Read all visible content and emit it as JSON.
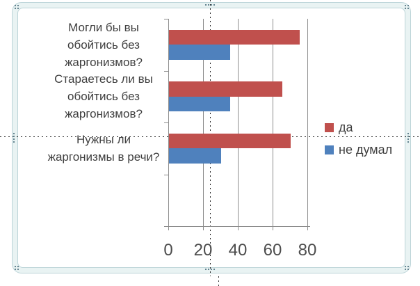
{
  "chart_data": {
    "type": "bar",
    "orientation": "horizontal",
    "categories": [
      "Могли бы вы обойтись без жаргонизмов?",
      "Стараетесь ли вы обойтись без жаргонизмов?",
      "Нужны ли жаргонизмы в речи?"
    ],
    "category_label_lines": [
      [
        "Могли бы вы",
        "обойтись без",
        "жаргонизмов?"
      ],
      [
        "Стараетесь ли вы",
        "обойтись без",
        "жаргонизмов?"
      ],
      [
        "Нужны ли",
        "жаргонизмы в речи?"
      ]
    ],
    "series": [
      {
        "name": "да",
        "color": "#C0504D",
        "values": [
          75,
          65,
          70
        ]
      },
      {
        "name": "не думал",
        "color": "#4F81BD",
        "values": [
          35,
          35,
          30
        ]
      }
    ],
    "xlim": [
      0,
      80
    ],
    "x_ticks": [
      "0",
      "20",
      "40",
      "60",
      "80"
    ],
    "grid": true,
    "legend_position": "right",
    "empty_category_slots": 1
  },
  "colors": {
    "gridline": "#8C8C8C",
    "axis": "#8C8C8C",
    "category_label_text": "#3F3F3F",
    "axis_number_text": "#4D4D4D",
    "frame_fill": "#E9F3F3",
    "frame_border": "#BCD4D8",
    "handle_dot": "#5E7E8B",
    "guide": "#2B2B2B"
  }
}
